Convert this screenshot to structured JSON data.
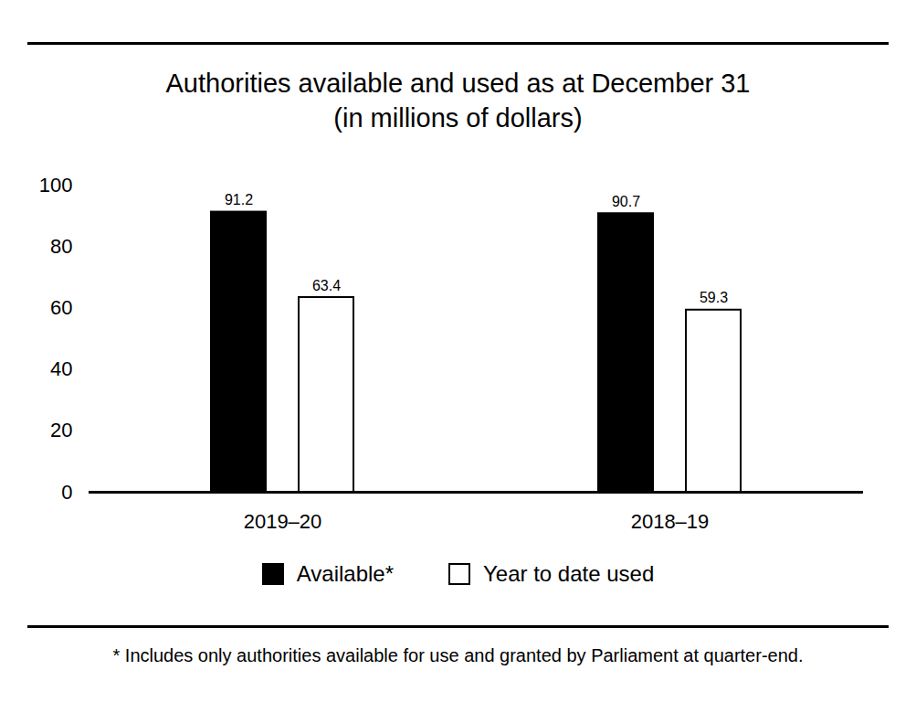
{
  "chart_data": {
    "type": "bar",
    "title": "Authorities available and used as at December 31",
    "subtitle": "(in millions of dollars)",
    "categories": [
      "2019–20",
      "2018–19"
    ],
    "series": [
      {
        "name": "Available*",
        "color": "#000000",
        "values": [
          91.2,
          90.7
        ]
      },
      {
        "name": "Year to date used",
        "color": "#ffffff",
        "values": [
          63.4,
          59.3
        ]
      }
    ],
    "ylim": [
      0,
      100
    ],
    "yticks": [
      0,
      20,
      40,
      60,
      80,
      100
    ],
    "grid": false,
    "legend": "bottom",
    "data_labels": true,
    "annotations": [
      "* Includes only authorities available for use and granted by Parliament at quarter-end."
    ]
  }
}
